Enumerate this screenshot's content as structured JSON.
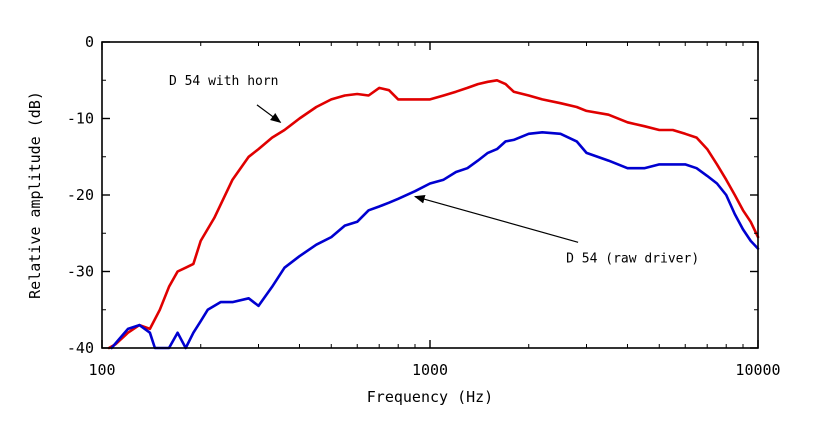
{
  "chart_data": {
    "type": "line",
    "title": "",
    "xlabel": "Frequency (Hz)",
    "ylabel": "Relative amplitude (dB)",
    "x_scale": "log",
    "xlim": [
      100,
      10000
    ],
    "ylim": [
      -40,
      0
    ],
    "x_ticks": [
      100,
      1000,
      10000
    ],
    "x_tick_labels": [
      "100",
      "1000",
      "10000"
    ],
    "y_ticks": [
      0,
      -10,
      -20,
      -30,
      -40
    ],
    "y_tick_labels": [
      "0",
      "-10",
      "-20",
      "-30",
      "-40"
    ],
    "grid": false,
    "series": [
      {
        "name": "D 54 with horn",
        "color": "#e00000",
        "x": [
          105,
          110,
          120,
          130,
          140,
          150,
          160,
          170,
          180,
          190,
          200,
          220,
          250,
          280,
          300,
          330,
          360,
          400,
          450,
          500,
          550,
          600,
          650,
          700,
          750,
          800,
          900,
          1000,
          1100,
          1200,
          1300,
          1400,
          1500,
          1600,
          1700,
          1800,
          2000,
          2200,
          2500,
          2800,
          3000,
          3500,
          4000,
          4500,
          5000,
          5500,
          6000,
          6500,
          7000,
          7500,
          8000,
          8500,
          9000,
          9500,
          10000
        ],
        "values": [
          -40,
          -39.5,
          -38,
          -37,
          -37.5,
          -35,
          -32,
          -30,
          -29.5,
          -29,
          -26,
          -23,
          -18,
          -15,
          -14,
          -12.5,
          -11.5,
          -10,
          -8.5,
          -7.5,
          -7,
          -6.8,
          -7,
          -6,
          -6.3,
          -7.5,
          -7.5,
          -7.5,
          -7,
          -6.5,
          -6,
          -5.5,
          -5.2,
          -5,
          -5.5,
          -6.5,
          -7,
          -7.5,
          -8,
          -8.5,
          -9,
          -9.5,
          -10.5,
          -11,
          -11.5,
          -11.5,
          -12,
          -12.5,
          -14,
          -16,
          -18,
          -20,
          -22,
          -23.5,
          -25.5
        ]
      },
      {
        "name": "D 54 (raw driver)",
        "color": "#0000d0",
        "x": [
          107,
          112,
          120,
          130,
          140,
          145,
          160,
          170,
          180,
          190,
          200,
          210,
          230,
          250,
          280,
          300,
          330,
          360,
          400,
          450,
          500,
          550,
          600,
          650,
          700,
          750,
          800,
          900,
          1000,
          1100,
          1200,
          1300,
          1400,
          1500,
          1600,
          1700,
          1800,
          2000,
          2200,
          2500,
          2800,
          3000,
          3500,
          4000,
          4500,
          5000,
          5500,
          6000,
          6500,
          7000,
          7500,
          8000,
          8500,
          9000,
          9500,
          10000
        ],
        "values": [
          -40,
          -39,
          -37.5,
          -37,
          -38,
          -40,
          -40,
          -38,
          -40,
          -38,
          -36.5,
          -35,
          -34,
          -34,
          -33.5,
          -34.5,
          -32,
          -29.5,
          -28,
          -26.5,
          -25.5,
          -24,
          -23.5,
          -22,
          -21.5,
          -21,
          -20.5,
          -19.5,
          -18.5,
          -18,
          -17,
          -16.5,
          -15.5,
          -14.5,
          -14,
          -13,
          -12.8,
          -12,
          -11.8,
          -12,
          -13,
          -14.5,
          -15.5,
          -16.5,
          -16.5,
          -16,
          -16,
          -16,
          -16.5,
          -17.5,
          -18.5,
          -20,
          -22.5,
          -24.5,
          -26,
          -27
        ]
      }
    ],
    "annotations": [
      {
        "text": "D 54 with horn",
        "x": 160,
        "y": -5.6,
        "arrow_to_x": 350,
        "arrow_to_y": -10.5
      },
      {
        "text": "D 54 (raw driver)",
        "x": 2600,
        "y": -28.8,
        "arrow_to_x": 900,
        "arrow_to_y": -20.2
      }
    ]
  }
}
